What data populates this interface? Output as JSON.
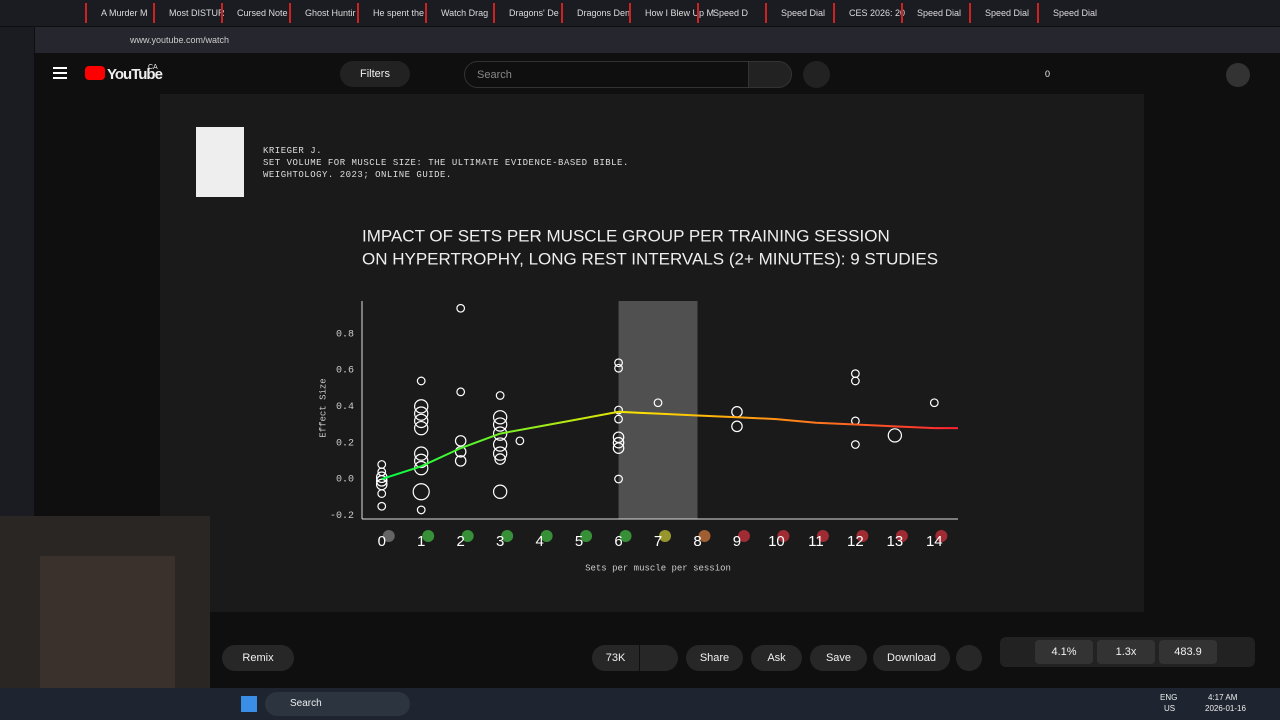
{
  "browser": {
    "tabs": [
      "A Murder M",
      "Most DISTUR",
      "Cursed Note",
      "Ghost Huntir",
      "He spent the",
      "Watch Drag",
      "Dragons' De",
      "Dragons Den",
      "How I Blew Up M",
      "Speed D",
      "Speed Dial",
      "CES 2026: 20",
      "Speed Dial",
      "Speed Dial",
      "Speed Dial"
    ],
    "url": "www.youtube.com/watch"
  },
  "youtube": {
    "logo": "YouTube",
    "region": "CA",
    "filters": "Filters",
    "search_placeholder": "Search",
    "counter": "0"
  },
  "video": {
    "citation": [
      "KRIEGER J.",
      "SET VOLUME FOR MUSCLE SIZE: THE ULTIMATE EVIDENCE-BASED BIBLE.",
      "WEIGHTOLOGY. 2023; ONLINE GUIDE."
    ]
  },
  "chart_data": {
    "type": "scatter",
    "title": [
      "IMPACT OF SETS PER MUSCLE GROUP PER TRAINING SESSION",
      "ON HYPERTROPHY, LONG REST INTERVALS (2+ MINUTES): 9 STUDIES"
    ],
    "x_label": "Sets per muscle per session",
    "y_label": "Effect Size",
    "xlim": [
      -0.5,
      14.6
    ],
    "ylim": [
      -0.22,
      0.98
    ],
    "xticks": [
      0,
      1,
      2,
      3,
      4,
      5,
      6,
      7,
      8,
      9,
      10,
      11,
      12,
      13,
      14
    ],
    "yticks": [
      {
        "value": -0.2,
        "label": "-0.2"
      },
      {
        "value": 0,
        "label": "0.0"
      },
      0.2,
      0.4,
      0.6,
      0.8
    ],
    "tick_icon_colors": [
      "#777777",
      "#3fae3f",
      "#3fae3f",
      "#3fae3f",
      "#3fae3f",
      "#3fae3f",
      "#3fae3f",
      "#b5b532",
      "#c0703a",
      "#c0303a",
      "#c0303a",
      "#c0303a",
      "#c0303a",
      "#c0303a",
      "#c0303a"
    ],
    "highlight": [
      6,
      8
    ],
    "series": [
      {
        "name": "Studies",
        "color": "#ffffff",
        "x": [
          0,
          0,
          0,
          0,
          0,
          0,
          0,
          1,
          1,
          1,
          1,
          1,
          1,
          1,
          1,
          1,
          1,
          2,
          2,
          2,
          2,
          2,
          3,
          3,
          3,
          3,
          3,
          3,
          3,
          3,
          3.5,
          6,
          6,
          6,
          6,
          6,
          6,
          6,
          6,
          7,
          9,
          9,
          12,
          12,
          12,
          12,
          13,
          14
        ],
        "values": [
          0.08,
          0.04,
          0.01,
          -0.01,
          -0.03,
          -0.08,
          -0.15,
          0.54,
          0.4,
          0.36,
          0.32,
          0.28,
          0.14,
          0.1,
          0.06,
          -0.07,
          -0.17,
          0.94,
          0.48,
          0.21,
          0.15,
          0.1,
          0.46,
          0.34,
          0.3,
          0.25,
          0.19,
          0.14,
          0.11,
          -0.07,
          0.21,
          0.64,
          0.61,
          0.38,
          0.33,
          0.23,
          0.2,
          0.17,
          0,
          0.42,
          0.37,
          0.29,
          0.58,
          0.54,
          0.32,
          0.19,
          0.24,
          0.42
        ],
        "sizes": [
          2,
          2,
          3,
          3,
          3,
          2,
          2,
          2,
          4,
          4,
          4,
          4,
          4,
          4,
          4,
          5,
          2,
          2,
          2,
          3,
          3,
          3,
          2,
          4,
          4,
          4,
          4,
          4,
          3,
          4,
          2,
          2,
          2,
          2,
          2,
          3,
          3,
          3,
          2,
          2,
          3,
          3,
          2,
          2,
          2,
          2,
          4,
          2
        ]
      },
      {
        "name": "Trend",
        "color": "#00ff44",
        "end_color": "#ff2233",
        "x": [
          0,
          1,
          2,
          3,
          4,
          5,
          6,
          7,
          8,
          9,
          10,
          11,
          12,
          13,
          14,
          14.6
        ],
        "values": [
          0,
          0.07,
          0.17,
          0.25,
          0.29,
          0.33,
          0.37,
          0.36,
          0.35,
          0.34,
          0.33,
          0.31,
          0.3,
          0.29,
          0.28,
          0.28
        ]
      }
    ]
  },
  "actions": {
    "remix": "Remix",
    "likes": "73K",
    "share": "Share",
    "ask": "Ask",
    "save": "Save",
    "download": "Download"
  },
  "stats": [
    "4.1%",
    "1.3x",
    "483.9"
  ],
  "taskbar": {
    "search": "Search",
    "lang": "ENG",
    "region": "US",
    "time": "4:17 AM",
    "date": "2026-01-16"
  }
}
